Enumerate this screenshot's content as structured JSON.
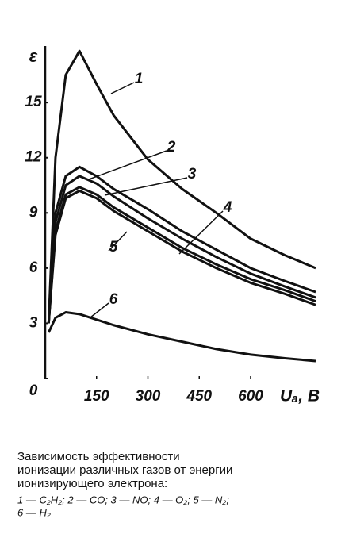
{
  "chart_data": {
    "type": "line",
    "ylabel": "ε",
    "xlabel": "Uₐ, B",
    "x": [
      10,
      30,
      60,
      100,
      150,
      200,
      300,
      400,
      500,
      600,
      700,
      790
    ],
    "series": [
      {
        "name": "1",
        "color": "#111111",
        "values": [
          3,
          12,
          16.5,
          17.8,
          16.0,
          14.3,
          11.9,
          10.3,
          9.0,
          7.6,
          6.7,
          6.0
        ]
      },
      {
        "name": "2",
        "color": "#111111",
        "values": [
          3,
          9,
          11.0,
          11.5,
          11.0,
          10.3,
          9.2,
          8.0,
          7.0,
          6.0,
          5.3,
          4.7
        ]
      },
      {
        "name": "3",
        "color": "#111111",
        "values": [
          3,
          8.5,
          10.5,
          11.0,
          10.6,
          9.9,
          8.7,
          7.6,
          6.6,
          5.7,
          5.0,
          4.4
        ]
      },
      {
        "name": "4",
        "color": "#111111",
        "values": [
          3,
          8,
          10,
          10.4,
          10.0,
          9.3,
          8.2,
          7.1,
          6.2,
          5.4,
          4.8,
          4.2
        ]
      },
      {
        "name": "5",
        "color": "#111111",
        "values": [
          3,
          7.8,
          9.8,
          10.2,
          9.8,
          9.1,
          8.0,
          6.9,
          6.0,
          5.2,
          4.6,
          4.0
        ]
      },
      {
        "name": "6",
        "color": "#111111",
        "values": [
          2.5,
          3.3,
          3.6,
          3.5,
          3.2,
          2.9,
          2.4,
          2.0,
          1.6,
          1.3,
          1.1,
          0.95
        ]
      }
    ],
    "xlim": [
      0,
      790
    ],
    "ylim": [
      0,
      18.5
    ],
    "xticks": [
      150,
      300,
      450,
      600
    ],
    "yticks": [
      0,
      3,
      6,
      9,
      12,
      15
    ],
    "caption": [
      "Зависимость   эффективности",
      "ионизации различных газов от энергии",
      "ионизирующего электрона:"
    ],
    "legend_lines": [
      "1 — C₂H₂;  2 — CO;   3 — NO;   4 — O₂;   5 — N₂;",
      "6 — H₂"
    ]
  }
}
